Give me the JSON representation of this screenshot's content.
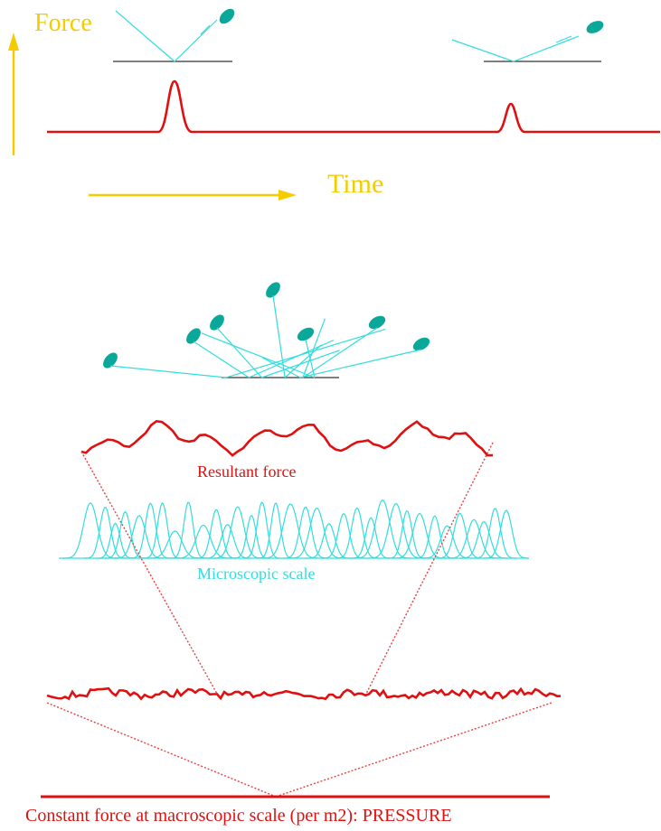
{
  "labels": {
    "force": "Force",
    "time": "Time",
    "resultant": "Resultant force",
    "microscopic": "Microscopic scale",
    "pressure": "Constant force at macroscopic scale (per m2): PRESSURE"
  }
}
